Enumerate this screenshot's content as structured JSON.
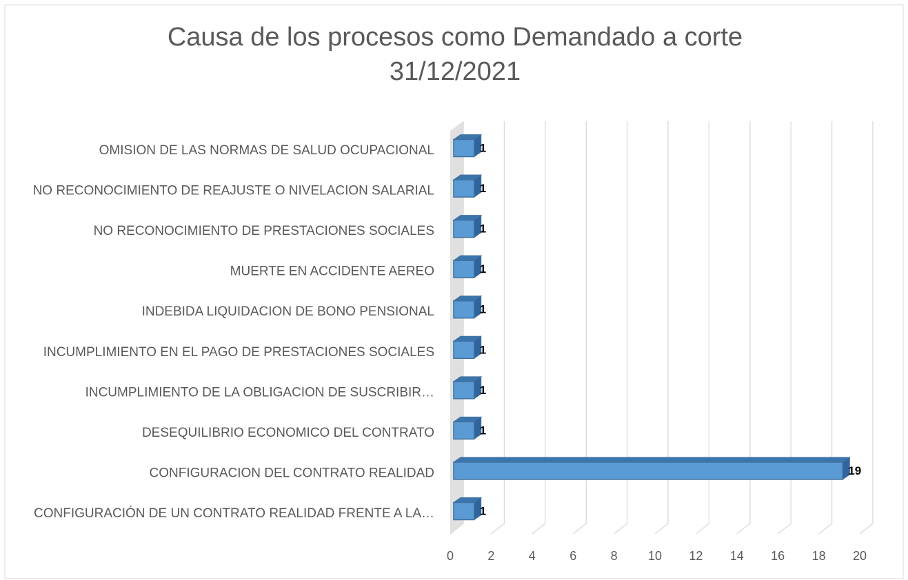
{
  "chart_data": {
    "type": "bar",
    "orientation": "horizontal",
    "title": [
      "Causa de los procesos como Demandado a corte",
      "31/12/2021"
    ],
    "categories": [
      "OMISION DE LAS NORMAS DE SALUD OCUPACIONAL",
      "NO RECONOCIMIENTO DE REAJUSTE O NIVELACION SALARIAL",
      "NO RECONOCIMIENTO DE PRESTACIONES SOCIALES",
      "MUERTE EN ACCIDENTE AEREO",
      "INDEBIDA LIQUIDACION DE BONO PENSIONAL",
      "INCUMPLIMIENTO EN EL PAGO DE PRESTACIONES SOCIALES",
      "INCUMPLIMIENTO DE LA OBLIGACION DE SUSCRIBIR…",
      "DESEQUILIBRIO ECONOMICO DEL CONTRATO",
      "CONFIGURACION DEL CONTRATO REALIDAD",
      "CONFIGURACIÓN DE UN CONTRATO REALIDAD FRENTE A LA…"
    ],
    "values": [
      1,
      1,
      1,
      1,
      1,
      1,
      1,
      1,
      19,
      1
    ],
    "color": "#5b9bd5",
    "xlim": [
      0,
      20
    ],
    "xticks": [
      0,
      2,
      4,
      6,
      8,
      10,
      12,
      14,
      16,
      18,
      20
    ],
    "grid": true
  }
}
